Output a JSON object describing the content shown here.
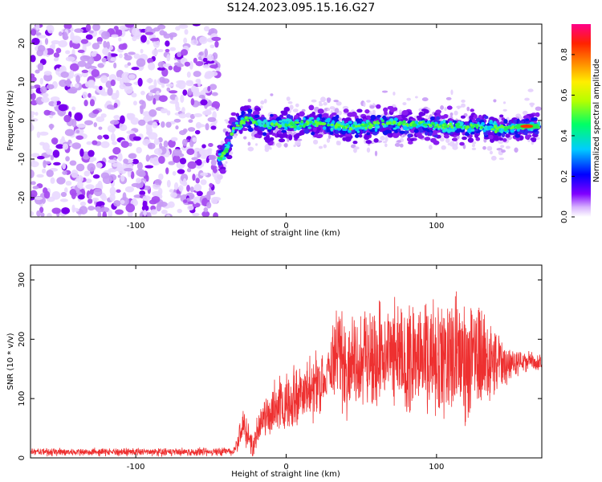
{
  "title": "S124.2023.095.15.16.G27",
  "chart_data": [
    {
      "type": "heatmap",
      "xlabel": "Height of straight line (km)",
      "ylabel": "Frequency (Hz)",
      "xlim": [
        -170,
        170
      ],
      "ylim": [
        -25,
        25
      ],
      "xticks": [
        -100,
        0,
        100
      ],
      "yticks": [
        -20,
        -10,
        0,
        10,
        20
      ],
      "noise_region_x": [
        -170,
        -45
      ],
      "ridge": [
        {
          "x": -45,
          "y": -10
        },
        {
          "x": -40,
          "y": -8
        },
        {
          "x": -35,
          "y": -2
        },
        {
          "x": -25,
          "y": 0.5
        },
        {
          "x": -20,
          "y": -0.5
        },
        {
          "x": -10,
          "y": -1.5
        },
        {
          "x": 0,
          "y": -1
        },
        {
          "x": 10,
          "y": -1
        },
        {
          "x": 20,
          "y": -0.5
        },
        {
          "x": 30,
          "y": -1
        },
        {
          "x": 40,
          "y": -1.5
        },
        {
          "x": 50,
          "y": -1.5
        },
        {
          "x": 60,
          "y": -1
        },
        {
          "x": 70,
          "y": -0.5
        },
        {
          "x": 80,
          "y": -1
        },
        {
          "x": 90,
          "y": -1
        },
        {
          "x": 100,
          "y": -1.5
        },
        {
          "x": 110,
          "y": -1.5
        },
        {
          "x": 120,
          "y": -1.5
        },
        {
          "x": 130,
          "y": -1.5
        },
        {
          "x": 140,
          "y": -2
        },
        {
          "x": 150,
          "y": -2
        },
        {
          "x": 160,
          "y": -1.5
        },
        {
          "x": 168,
          "y": -1.5
        }
      ],
      "colorbar": {
        "label": "Normalized spectral amplitude",
        "range": [
          0.0,
          0.95
        ],
        "ticks": [
          0.0,
          0.2,
          0.4,
          0.6,
          0.8
        ]
      }
    },
    {
      "type": "line",
      "xlabel": "Height of straight line (km)",
      "ylabel": "SNR (10 * v/v)",
      "xlim": [
        -170,
        170
      ],
      "ylim": [
        0,
        325
      ],
      "xticks": [
        -100,
        0,
        100
      ],
      "yticks": [
        0,
        100,
        200,
        300
      ],
      "color": "#ee3030",
      "series": [
        {
          "x": [
            -170,
            -140,
            -110,
            -80,
            -50,
            -35,
            -28,
            -22,
            -18,
            -12,
            -5,
            0,
            10,
            20,
            30,
            32,
            40,
            50,
            60,
            70,
            80,
            90,
            100,
            110,
            115,
            120,
            130,
            140,
            150,
            160,
            170
          ],
          "y": [
            10,
            10,
            10,
            10,
            10,
            12,
            55,
            15,
            60,
            75,
            90,
            95,
            110,
            120,
            140,
            190,
            165,
            165,
            168,
            165,
            165,
            168,
            168,
            168,
            170,
            165,
            165,
            160,
            160,
            162,
            162
          ],
          "spread": [
            6,
            6,
            6,
            6,
            6,
            8,
            30,
            20,
            30,
            40,
            45,
            45,
            50,
            55,
            55,
            80,
            75,
            80,
            85,
            85,
            90,
            90,
            95,
            100,
            120,
            100,
            80,
            55,
            25,
            15,
            15
          ]
        }
      ]
    }
  ]
}
